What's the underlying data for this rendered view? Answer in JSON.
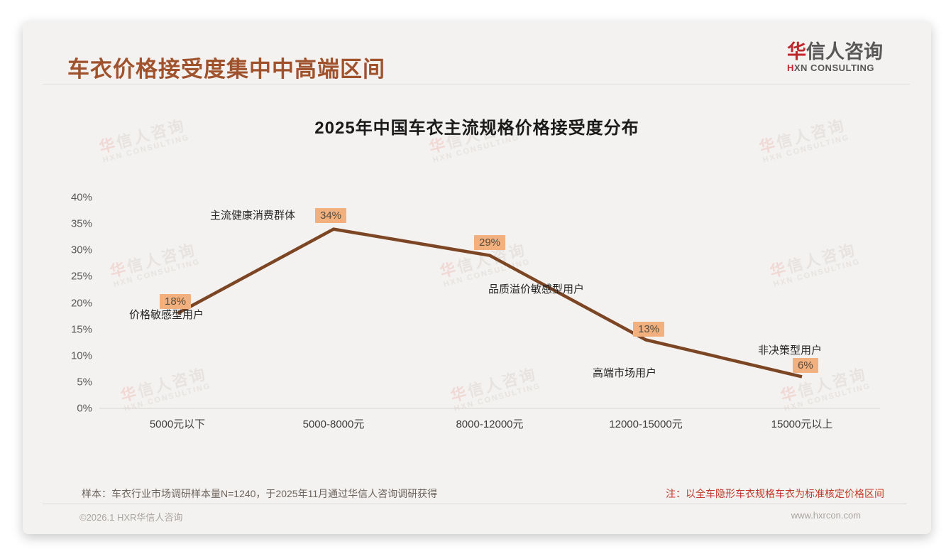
{
  "page": {
    "header_title": "车衣价格接受度集中中高端区间",
    "logo": {
      "brand_first": "华",
      "brand_rest": "信人咨询",
      "sub_first": "H",
      "sub_rest": "XN CONSULTING"
    },
    "watermark": {
      "line1_first": "华",
      "line1_rest": "信人咨询",
      "line2": "HXN CONSULTING"
    },
    "footer": {
      "sample_note": "样本：车衣行业市场调研样本量N=1240，于2025年11月通过华信人咨询调研获得",
      "price_note": "注：以全车隐形车衣规格车衣为标准核定价格区间",
      "copyright": "©2026.1 HXR华信人咨询",
      "website": "www.hxrcon.com"
    }
  },
  "chart_data": {
    "type": "line",
    "title": "2025年中国车衣主流规格价格接受度分布",
    "categories": [
      "5000元以下",
      "5000-8000元",
      "8000-12000元",
      "12000-15000元",
      "15000元以上"
    ],
    "values": [
      18,
      34,
      29,
      13,
      6
    ],
    "data_labels": [
      "18%",
      "34%",
      "29%",
      "13%",
      "6%"
    ],
    "point_annotations": [
      "价格敏感型用户",
      "主流健康消费群体",
      "品质溢价敏感型用户",
      "高端市场用户",
      "非决策型用户"
    ],
    "xlabel": "",
    "ylabel": "",
    "ylim": [
      0,
      40
    ],
    "ytick_step": 5,
    "ytick_labels": [
      "0%",
      "5%",
      "10%",
      "15%",
      "20%",
      "25%",
      "30%",
      "35%",
      "40%"
    ],
    "grid": false,
    "legend": null,
    "colors": {
      "line": "#7c4524",
      "axis": "#d9d6d2",
      "data_label_bg": "#f1b07e",
      "data_label_text": "#564c41",
      "title_accent": "#a0522d",
      "note_red": "#c0392b",
      "logo_red": "#c0272d"
    }
  }
}
